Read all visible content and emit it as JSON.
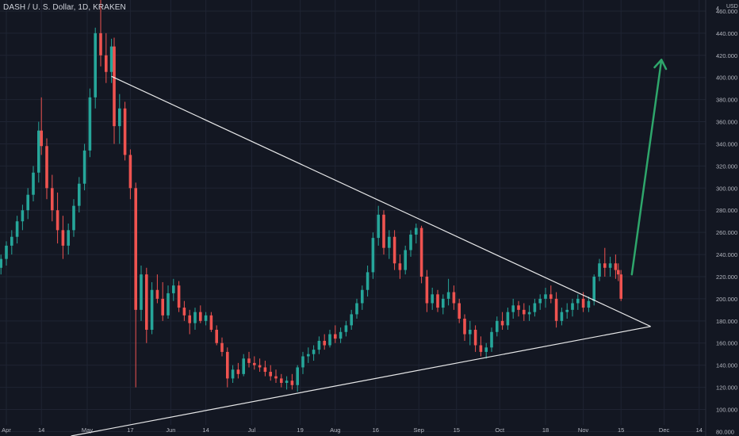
{
  "header": {
    "symbol_line": "DASH / U. S. Dollar, 1D, KRAKEN"
  },
  "colors": {
    "background": "#131722",
    "grid": "#1f2433",
    "up": "#26a69a",
    "down": "#ef5350",
    "trendline": "#ffffff",
    "arrow": "#2ea66b",
    "axis_text": "#b2b5be"
  },
  "chart_data": {
    "type": "candlestick",
    "title": "DASH / U. S. Dollar, 1D, KRAKEN",
    "xlabel": "",
    "ylabel": "",
    "y_unit_label": "USD",
    "ylim": [
      76,
      470
    ],
    "y_ticks": [
      80,
      100,
      120,
      140,
      160,
      180,
      200,
      220,
      240,
      260,
      280,
      300,
      320,
      340,
      360,
      380,
      400,
      420,
      440,
      460
    ],
    "y_tick_labels": [
      "80.000",
      "100.000",
      "120.000",
      "140.000",
      "160.000",
      "180.000",
      "200.000",
      "220.000",
      "240.000",
      "260.000",
      "280.000",
      "300.000",
      "320.000",
      "340.000",
      "360.000",
      "380.000",
      "400.000",
      "420.000",
      "440.000",
      "460.000"
    ],
    "y_top_label": "4",
    "x_ticks": [
      {
        "date": "2021-04-01",
        "label": "Apr"
      },
      {
        "date": "2021-04-14",
        "label": "14"
      },
      {
        "date": "2021-05-01",
        "label": "May"
      },
      {
        "date": "2021-05-17",
        "label": "17"
      },
      {
        "date": "2021-06-01",
        "label": "Jun"
      },
      {
        "date": "2021-06-14",
        "label": "14"
      },
      {
        "date": "2021-07-01",
        "label": "Jul"
      },
      {
        "date": "2021-07-19",
        "label": "19"
      },
      {
        "date": "2021-08-01",
        "label": "Aug"
      },
      {
        "date": "2021-08-16",
        "label": "16"
      },
      {
        "date": "2021-09-01",
        "label": "Sep"
      },
      {
        "date": "2021-09-15",
        "label": "15"
      },
      {
        "date": "2021-10-01",
        "label": "Oct"
      },
      {
        "date": "2021-10-18",
        "label": "18"
      },
      {
        "date": "2021-11-01",
        "label": "Nov"
      },
      {
        "date": "2021-11-15",
        "label": "15"
      },
      {
        "date": "2021-12-01",
        "label": "Dec"
      },
      {
        "date": "2021-12-14",
        "label": "14"
      }
    ],
    "series": [
      {
        "name": "DASHUSD",
        "candles": [
          [
            "2021-03-30",
            228,
            240,
            222,
            236
          ],
          [
            "2021-04-01",
            236,
            252,
            230,
            248
          ],
          [
            "2021-04-03",
            248,
            262,
            240,
            256
          ],
          [
            "2021-04-05",
            256,
            275,
            250,
            270
          ],
          [
            "2021-04-07",
            270,
            285,
            262,
            280
          ],
          [
            "2021-04-09",
            280,
            300,
            272,
            294
          ],
          [
            "2021-04-11",
            294,
            320,
            288,
            314
          ],
          [
            "2021-04-13",
            314,
            360,
            305,
            352
          ],
          [
            "2021-04-14",
            352,
            382,
            330,
            338
          ],
          [
            "2021-04-16",
            338,
            345,
            290,
            300
          ],
          [
            "2021-04-18",
            300,
            312,
            270,
            280
          ],
          [
            "2021-04-20",
            280,
            296,
            250,
            262
          ],
          [
            "2021-04-22",
            262,
            275,
            236,
            248
          ],
          [
            "2021-04-24",
            248,
            268,
            240,
            262
          ],
          [
            "2021-04-26",
            262,
            290,
            256,
            284
          ],
          [
            "2021-04-28",
            284,
            310,
            278,
            304
          ],
          [
            "2021-04-30",
            304,
            340,
            298,
            334
          ],
          [
            "2021-05-02",
            334,
            390,
            328,
            382
          ],
          [
            "2021-05-04",
            382,
            445,
            372,
            440
          ],
          [
            "2021-05-06",
            440,
            476,
            410,
            420
          ],
          [
            "2021-05-08",
            420,
            440,
            395,
            405
          ],
          [
            "2021-05-10",
            405,
            435,
            395,
            428
          ],
          [
            "2021-05-11",
            428,
            436,
            340,
            356
          ],
          [
            "2021-05-13",
            356,
            385,
            340,
            372
          ],
          [
            "2021-05-15",
            372,
            378,
            325,
            330
          ],
          [
            "2021-05-17",
            330,
            335,
            290,
            300
          ],
          [
            "2021-05-19",
            300,
            305,
            120,
            190
          ],
          [
            "2021-05-21",
            190,
            230,
            180,
            222
          ],
          [
            "2021-05-23",
            222,
            228,
            160,
            172
          ],
          [
            "2021-05-25",
            172,
            215,
            168,
            208
          ],
          [
            "2021-05-27",
            208,
            222,
            196,
            200
          ],
          [
            "2021-05-29",
            200,
            215,
            180,
            185
          ],
          [
            "2021-05-31",
            185,
            212,
            182,
            205
          ],
          [
            "2021-06-02",
            205,
            218,
            198,
            212
          ],
          [
            "2021-06-04",
            212,
            216,
            188,
            192
          ],
          [
            "2021-06-06",
            192,
            198,
            180,
            185
          ],
          [
            "2021-06-08",
            185,
            190,
            168,
            178
          ],
          [
            "2021-06-10",
            178,
            192,
            172,
            188
          ],
          [
            "2021-06-12",
            188,
            194,
            178,
            180
          ],
          [
            "2021-06-14",
            180,
            188,
            176,
            185
          ],
          [
            "2021-06-16",
            185,
            188,
            170,
            172
          ],
          [
            "2021-06-18",
            172,
            176,
            158,
            160
          ],
          [
            "2021-06-20",
            160,
            165,
            148,
            152
          ],
          [
            "2021-06-22",
            152,
            156,
            120,
            128
          ],
          [
            "2021-06-24",
            128,
            140,
            124,
            136
          ],
          [
            "2021-06-26",
            136,
            142,
            128,
            132
          ],
          [
            "2021-06-28",
            132,
            150,
            130,
            146
          ],
          [
            "2021-06-30",
            146,
            152,
            138,
            142
          ],
          [
            "2021-07-02",
            142,
            148,
            136,
            140
          ],
          [
            "2021-07-04",
            140,
            146,
            134,
            138
          ],
          [
            "2021-07-06",
            138,
            144,
            130,
            134
          ],
          [
            "2021-07-08",
            134,
            140,
            126,
            130
          ],
          [
            "2021-07-10",
            130,
            136,
            124,
            128
          ],
          [
            "2021-07-12",
            128,
            132,
            120,
            124
          ],
          [
            "2021-07-14",
            124,
            130,
            118,
            126
          ],
          [
            "2021-07-16",
            126,
            132,
            118,
            122
          ],
          [
            "2021-07-18",
            122,
            140,
            116,
            138
          ],
          [
            "2021-07-20",
            138,
            152,
            132,
            148
          ],
          [
            "2021-07-22",
            148,
            156,
            142,
            150
          ],
          [
            "2021-07-24",
            150,
            158,
            144,
            154
          ],
          [
            "2021-07-26",
            154,
            166,
            150,
            162
          ],
          [
            "2021-07-28",
            162,
            168,
            154,
            158
          ],
          [
            "2021-07-30",
            158,
            172,
            156,
            168
          ],
          [
            "2021-08-01",
            168,
            176,
            160,
            164
          ],
          [
            "2021-08-03",
            164,
            174,
            160,
            170
          ],
          [
            "2021-08-05",
            170,
            180,
            166,
            176
          ],
          [
            "2021-08-07",
            176,
            190,
            172,
            186
          ],
          [
            "2021-08-09",
            186,
            200,
            182,
            196
          ],
          [
            "2021-08-11",
            196,
            212,
            190,
            208
          ],
          [
            "2021-08-13",
            208,
            230,
            202,
            224
          ],
          [
            "2021-08-15",
            224,
            260,
            218,
            255
          ],
          [
            "2021-08-17",
            255,
            284,
            248,
            276
          ],
          [
            "2021-08-19",
            276,
            280,
            240,
            246
          ],
          [
            "2021-08-21",
            246,
            262,
            236,
            256
          ],
          [
            "2021-08-23",
            256,
            262,
            226,
            232
          ],
          [
            "2021-08-25",
            232,
            240,
            218,
            226
          ],
          [
            "2021-08-27",
            226,
            248,
            222,
            244
          ],
          [
            "2021-08-29",
            244,
            262,
            238,
            258
          ],
          [
            "2021-08-31",
            258,
            268,
            250,
            264
          ],
          [
            "2021-09-02",
            264,
            266,
            214,
            220
          ],
          [
            "2021-09-04",
            220,
            226,
            188,
            196
          ],
          [
            "2021-09-06",
            196,
            210,
            190,
            204
          ],
          [
            "2021-09-08",
            204,
            208,
            188,
            192
          ],
          [
            "2021-09-10",
            192,
            204,
            186,
            200
          ],
          [
            "2021-09-12",
            200,
            218,
            194,
            206
          ],
          [
            "2021-09-14",
            206,
            212,
            190,
            196
          ],
          [
            "2021-09-16",
            196,
            200,
            178,
            182
          ],
          [
            "2021-09-18",
            182,
            186,
            162,
            168
          ],
          [
            "2021-09-20",
            168,
            180,
            158,
            172
          ],
          [
            "2021-09-22",
            172,
            176,
            152,
            158
          ],
          [
            "2021-09-24",
            158,
            166,
            148,
            152
          ],
          [
            "2021-09-26",
            152,
            160,
            146,
            156
          ],
          [
            "2021-09-28",
            156,
            174,
            152,
            170
          ],
          [
            "2021-09-30",
            170,
            184,
            166,
            180
          ],
          [
            "2021-10-02",
            180,
            188,
            172,
            176
          ],
          [
            "2021-10-04",
            176,
            192,
            172,
            188
          ],
          [
            "2021-10-06",
            188,
            200,
            182,
            194
          ],
          [
            "2021-10-08",
            194,
            198,
            184,
            190
          ],
          [
            "2021-10-10",
            190,
            196,
            180,
            186
          ],
          [
            "2021-10-12",
            186,
            194,
            180,
            188
          ],
          [
            "2021-10-14",
            188,
            200,
            184,
            196
          ],
          [
            "2021-10-16",
            196,
            204,
            190,
            200
          ],
          [
            "2021-10-18",
            200,
            210,
            192,
            204
          ],
          [
            "2021-10-20",
            204,
            212,
            196,
            200
          ],
          [
            "2021-10-22",
            200,
            206,
            174,
            180
          ],
          [
            "2021-10-24",
            180,
            192,
            176,
            188
          ],
          [
            "2021-10-26",
            188,
            196,
            182,
            190
          ],
          [
            "2021-10-28",
            190,
            200,
            184,
            196
          ],
          [
            "2021-10-30",
            196,
            204,
            190,
            200
          ],
          [
            "2021-11-01",
            200,
            206,
            188,
            192
          ],
          [
            "2021-11-03",
            192,
            202,
            188,
            198
          ],
          [
            "2021-11-05",
            198,
            222,
            194,
            220
          ],
          [
            "2021-11-07",
            220,
            236,
            216,
            232
          ],
          [
            "2021-11-09",
            232,
            246,
            220,
            228
          ],
          [
            "2021-11-11",
            228,
            238,
            220,
            232
          ],
          [
            "2021-11-13",
            232,
            240,
            218,
            226
          ],
          [
            "2021-11-14",
            226,
            232,
            216,
            222
          ],
          [
            "2021-11-15",
            222,
            226,
            198,
            200
          ]
        ]
      }
    ],
    "trendlines": [
      {
        "from": {
          "date": "2021-05-10",
          "value": 401
        },
        "to": {
          "date": "2021-11-26",
          "value": 175
        }
      },
      {
        "from": {
          "date": "2021-04-25",
          "value": 76
        },
        "to": {
          "date": "2021-11-26",
          "value": 175
        }
      }
    ],
    "arrow": {
      "from": {
        "date": "2021-11-19",
        "value": 222
      },
      "to": {
        "date": "2021-11-30",
        "value": 416
      }
    },
    "grid": true,
    "legend": "none"
  }
}
